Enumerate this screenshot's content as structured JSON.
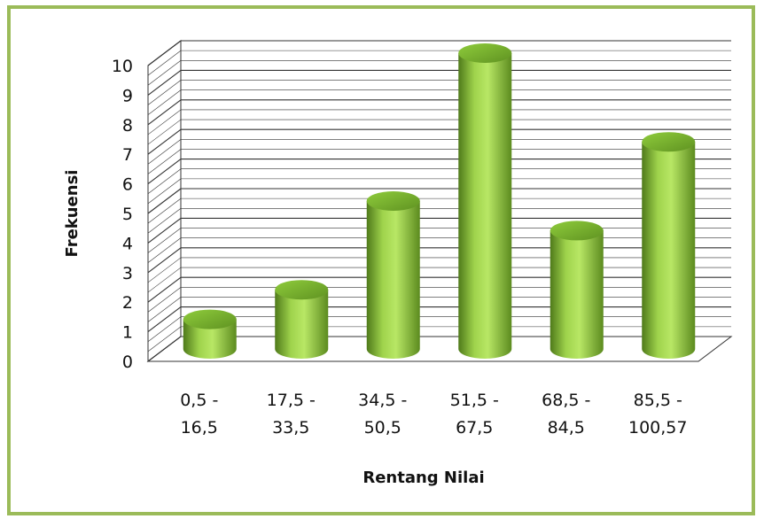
{
  "chart_data": {
    "type": "bar",
    "style": "3d-cylinder",
    "title": "",
    "xlabel": "Rentang Nilai",
    "ylabel": "Frekuensi",
    "ylim": [
      0,
      10
    ],
    "yticks": [
      "0",
      "1",
      "2",
      "3",
      "4",
      "5",
      "6",
      "7",
      "8",
      "9",
      "10"
    ],
    "grid": true,
    "legend": "none",
    "categories": [
      [
        "0,5 -",
        "16,5"
      ],
      [
        "17,5 -",
        "33,5"
      ],
      [
        "34,5 -",
        "50,5"
      ],
      [
        "51,5 -",
        "67,5"
      ],
      [
        "68,5 -",
        "84,5"
      ],
      [
        "85,5 -",
        "100,57"
      ]
    ],
    "values": [
      1,
      2,
      5,
      10,
      4,
      7
    ],
    "colors": {
      "bar_light": "#b4e35e",
      "bar_mid": "#8dc63f",
      "bar_dark": "#4f7a1a",
      "bar_top": "#7fb832",
      "border": "#9bbb59",
      "grid": "#333333"
    }
  }
}
